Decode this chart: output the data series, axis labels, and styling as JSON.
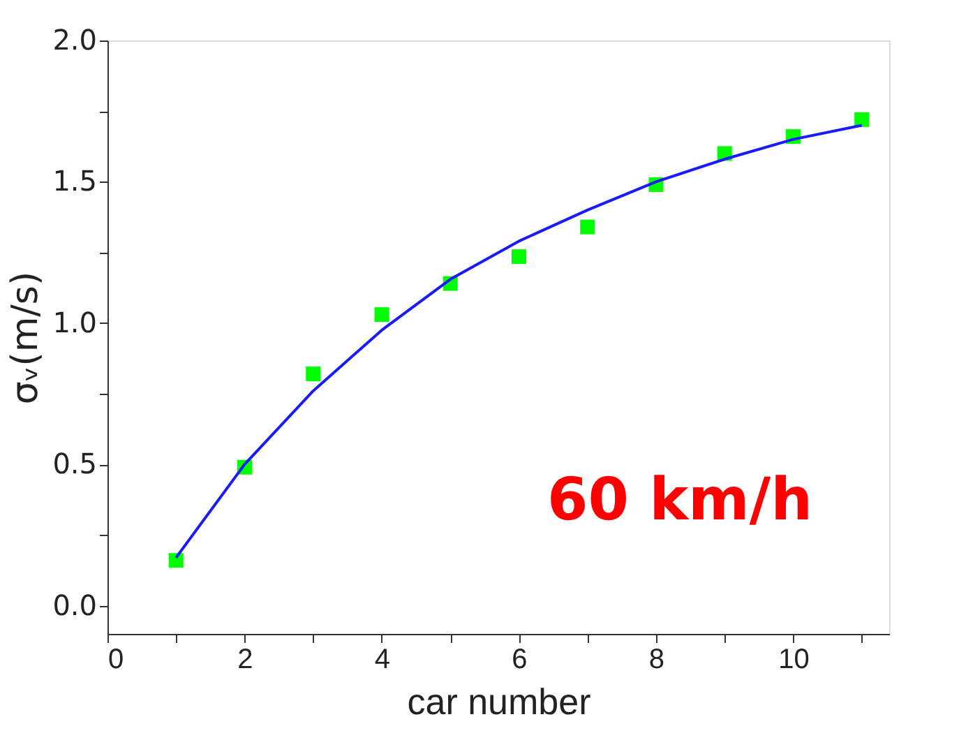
{
  "chart_data": {
    "type": "scatter",
    "xlabel": "car number",
    "ylabel": "σᵥ(m/s)",
    "x": [
      1,
      2,
      3,
      4,
      5,
      6,
      7,
      8,
      9,
      10,
      11
    ],
    "series": [
      {
        "color": "#00ff00",
        "marker": "square",
        "values": [
          0.16,
          0.49,
          0.82,
          1.03,
          1.14,
          1.235,
          1.34,
          1.49,
          1.6,
          1.66,
          1.72
        ]
      },
      {
        "type": "line",
        "color": "#1a1aff",
        "marker": "none",
        "line_style": "solid",
        "values": [
          0.17,
          0.5,
          0.76,
          0.975,
          1.155,
          1.29,
          1.4,
          1.5,
          1.58,
          1.65,
          1.7
        ]
      }
    ],
    "xlim": [
      0,
      11.4
    ],
    "ylim": [
      -0.1,
      2.0
    ],
    "xticks": [
      0,
      {
        "value": 1,
        "label": null
      },
      2,
      {
        "value": 3,
        "label": null
      },
      4,
      {
        "value": 5,
        "label": null
      },
      6,
      {
        "value": 7,
        "label": null
      },
      8,
      {
        "value": 9,
        "label": null
      },
      10,
      {
        "value": 11,
        "label": null
      }
    ],
    "yticks": [
      {
        "value": 0,
        "label": "0.0"
      },
      {
        "value": 0.25,
        "label": null
      },
      {
        "value": 0.5,
        "label": "0.5"
      },
      {
        "value": 0.75,
        "label": null
      },
      {
        "value": 1,
        "label": "1.0"
      },
      {
        "value": 1.25,
        "label": null
      },
      {
        "value": 1.5,
        "label": "1.5"
      },
      {
        "value": 1.75,
        "label": null
      },
      {
        "value": 2,
        "label": "2.0"
      }
    ],
    "grid": false,
    "legend": false,
    "annotations": [
      "60 km/h"
    ]
  }
}
